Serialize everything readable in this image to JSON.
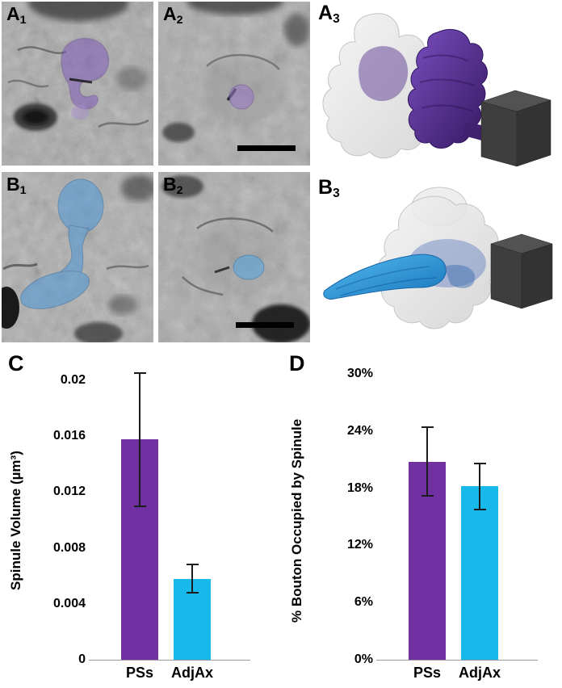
{
  "panels": {
    "em": [
      {
        "id": "a1",
        "letter": "A",
        "sub": "1",
        "highlight_color": "#7d55b8"
      },
      {
        "id": "a2",
        "letter": "A",
        "sub": "2",
        "highlight_color": "#9a79c8",
        "has_scale_bar": true
      },
      {
        "id": "b1",
        "letter": "B",
        "sub": "1",
        "highlight_color": "#4a96d8"
      },
      {
        "id": "b2",
        "letter": "B",
        "sub": "2",
        "highlight_color": "#5aa7dd",
        "has_scale_bar": true
      }
    ],
    "renders": [
      {
        "id": "a3",
        "letter": "A",
        "sub": "3",
        "structure_color": "#4b2585",
        "mesh_color": "#e7e7e7",
        "cube_color": "#3e3e3e"
      },
      {
        "id": "b3",
        "letter": "B",
        "sub": "3",
        "structure_color": "#2e9fe8",
        "mesh_color": "#e7e7e7",
        "cube_color": "#3e3e3e"
      }
    ]
  },
  "chart_data": [
    {
      "id": "C",
      "panel_label": "C",
      "type": "bar",
      "title": "",
      "ylabel": "Spinule Volume (µm³)",
      "categories": [
        "PSs",
        "AdjAx"
      ],
      "values": [
        0.0158,
        0.0058
      ],
      "error_minus": [
        0.0048,
        0.001
      ],
      "error_plus": [
        0.0047,
        0.001
      ],
      "bar_colors": [
        "#7130A2",
        "#16B9EA"
      ],
      "yticks": [
        0,
        0.004,
        0.008,
        0.012,
        0.016,
        0.02
      ],
      "ytick_labels": [
        "0",
        "0.004",
        "0.008",
        "0.012",
        "0.016",
        "0.02"
      ],
      "ylim": [
        0,
        0.0208
      ],
      "grid": false,
      "legend": null
    },
    {
      "id": "D",
      "panel_label": "D",
      "type": "bar",
      "title": "",
      "ylabel": "% Bouton Occupied by Spinule",
      "categories": [
        "PSs",
        "AdjAx"
      ],
      "values": [
        20.8,
        18.2
      ],
      "error_minus": [
        3.6,
        2.4
      ],
      "error_plus": [
        3.6,
        2.4
      ],
      "bar_colors": [
        "#7130A2",
        "#16B9EA"
      ],
      "yticks": [
        0,
        6,
        12,
        18,
        24,
        30
      ],
      "ytick_labels": [
        "0%",
        "6%",
        "12%",
        "18%",
        "24%",
        "30%"
      ],
      "ylim": [
        0,
        30.5
      ],
      "grid": false,
      "legend": null
    }
  ]
}
